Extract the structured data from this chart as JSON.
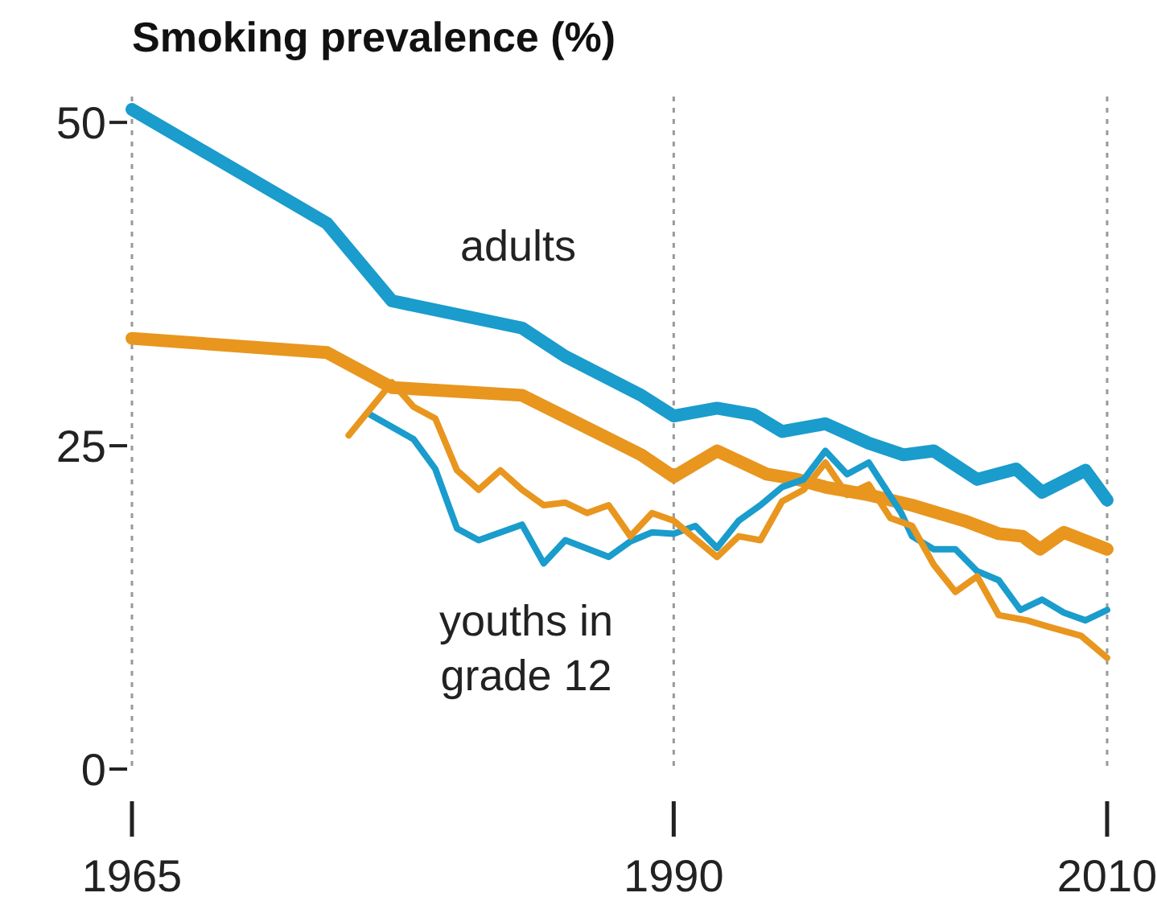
{
  "chart_data": {
    "type": "line",
    "title": "Smoking prevalence (%)",
    "xlim": [
      1965,
      2010
    ],
    "xticks": [
      1965,
      1990,
      2010
    ],
    "ylim": [
      0,
      52
    ],
    "yticks": [
      0,
      25,
      50
    ],
    "grid": "x",
    "line_style": "solid",
    "marker": "none",
    "annotations": [
      "adults",
      "youths in grade 12"
    ],
    "series": [
      {
        "color": "#1a9ccc",
        "x": [
          1965,
          1974,
          1977,
          1983,
          1985,
          1988.5,
          1990,
          1992,
          1993.7,
          1995,
          1997,
          1999,
          2000.6,
          2002,
          2004,
          2005.8,
          2007,
          2009,
          2010
        ],
        "values": [
          51,
          42.2,
          36.2,
          34.1,
          31.9,
          28.9,
          27.3,
          27.9,
          27.4,
          26.1,
          26.7,
          25.2,
          24.3,
          24.6,
          22.4,
          23.2,
          21.4,
          23.1,
          20.8
        ]
      },
      {
        "color": "#e8961e",
        "x": [
          1965,
          1974,
          1977,
          1983,
          1988.5,
          1990,
          1992,
          1994.3,
          1995.7,
          1997,
          1999,
          2001,
          2003.4,
          2005,
          2006.1,
          2006.9,
          2008,
          2010
        ],
        "values": [
          33.3,
          32.2,
          29.5,
          28.9,
          24.3,
          22.6,
          24.6,
          22.8,
          22.4,
          21.8,
          21.2,
          20.4,
          19.2,
          18.2,
          18.0,
          17.0,
          18.3,
          17.0
        ]
      },
      {
        "color": "#1a9ccc",
        "x": [
          1976,
          1978,
          1979,
          1980,
          1981,
          1983,
          1984,
          1985,
          1987,
          1988,
          1989,
          1990,
          1991,
          1992,
          1993,
          1994,
          1995,
          1996,
          1997,
          1998,
          1999,
          2000.5,
          2001,
          2002,
          2003,
          2004,
          2005,
          2006,
          2007,
          2008,
          2009,
          2010
        ],
        "values": [
          27.4,
          25.5,
          23.2,
          18.6,
          17.7,
          18.9,
          15.9,
          17.7,
          16.4,
          17.6,
          18.3,
          18.2,
          18.8,
          17.1,
          19.2,
          20.4,
          21.8,
          22.4,
          24.6,
          22.8,
          23.7,
          19.8,
          18.0,
          17.0,
          17.0,
          15.3,
          14.6,
          12.3,
          13.1,
          12.1,
          11.5,
          12.3
        ]
      },
      {
        "color": "#e8961e",
        "x": [
          1975,
          1977,
          1978,
          1979,
          1980,
          1981,
          1982,
          1983,
          1984,
          1985,
          1986,
          1987,
          1988,
          1989,
          1990,
          1992,
          1993,
          1994,
          1995,
          1996,
          1997,
          1998,
          1999,
          2000,
          2001,
          2002,
          2003,
          2004,
          2005,
          2006.3,
          2007.3,
          2008.8,
          2010
        ],
        "values": [
          25.8,
          29.9,
          28.0,
          27.1,
          23.1,
          21.6,
          23.1,
          21.6,
          20.4,
          20.6,
          19.8,
          20.4,
          18.0,
          19.8,
          19.2,
          16.4,
          18.0,
          17.7,
          20.7,
          21.6,
          23.7,
          21.2,
          22.0,
          19.4,
          18.8,
          15.8,
          13.7,
          14.9,
          11.9,
          11.5,
          11.0,
          10.3,
          8.6
        ]
      }
    ]
  }
}
